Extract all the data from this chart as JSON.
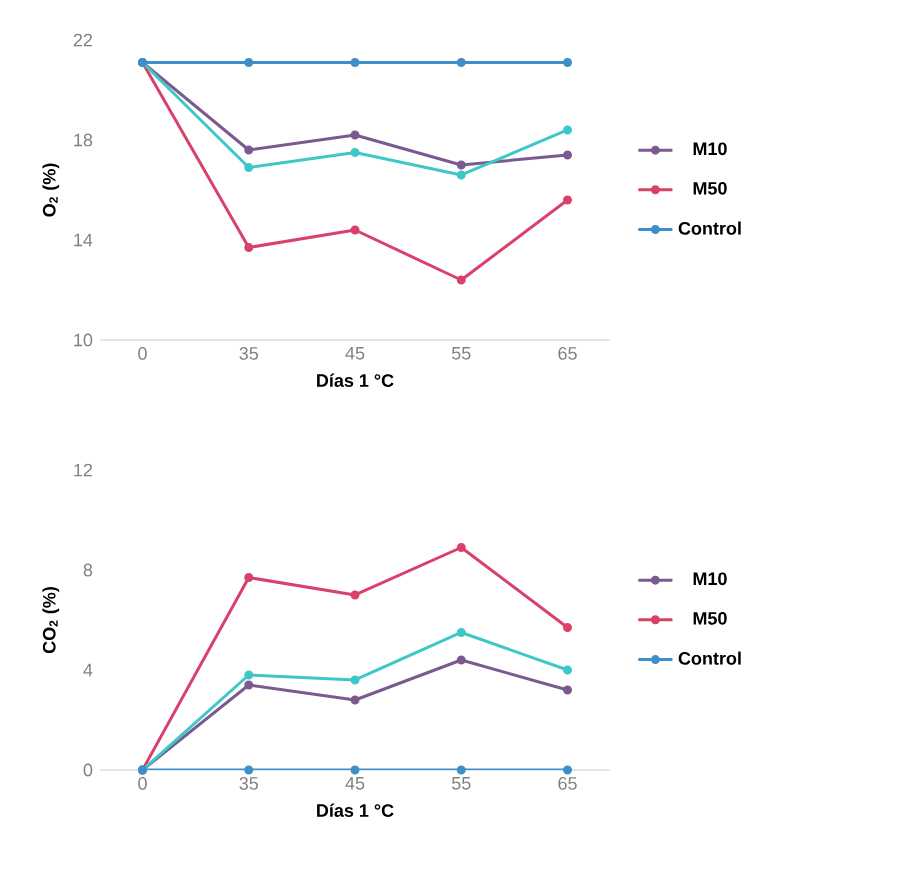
{
  "chart_data": [
    {
      "type": "line",
      "ylabel": "O$_{2}$ (%)",
      "xlabel": "Días 1 °C",
      "categories": [
        "0",
        "35",
        "45",
        "55",
        "65"
      ],
      "ylim": [
        10,
        22
      ],
      "yticks": [
        10,
        14,
        18,
        22
      ],
      "legend": "right",
      "marker": "circle",
      "series": [
        {
          "name": "M10",
          "color": "#7b5a8f",
          "values": [
            21.1,
            17.6,
            18.2,
            17.0,
            17.4
          ]
        },
        {
          "name": "M50",
          "color": "#d9406a",
          "values": [
            21.1,
            13.7,
            14.4,
            12.4,
            15.6
          ]
        },
        {
          "color": "#3fc7c7",
          "values": [
            21.1,
            16.9,
            17.5,
            16.6,
            18.4
          ]
        },
        {
          "name": "Control",
          "color": "#3d8fc9",
          "values": [
            21.1,
            21.1,
            21.1,
            21.1,
            21.1
          ]
        }
      ]
    },
    {
      "type": "line",
      "ylabel": "CO$_{2}$ (%)",
      "xlabel": "Días 1 °C",
      "categories": [
        "0",
        "35",
        "45",
        "55",
        "65"
      ],
      "ylim": [
        0,
        12
      ],
      "yticks": [
        0,
        4,
        8,
        12
      ],
      "legend": "right",
      "marker": "circle",
      "series": [
        {
          "name": "M10",
          "color": "#7b5a8f",
          "values": [
            0,
            3.4,
            2.8,
            4.4,
            3.2
          ]
        },
        {
          "name": "M50",
          "color": "#d9406a",
          "values": [
            0,
            7.7,
            7.0,
            8.9,
            5.7
          ]
        },
        {
          "color": "#3fc7c7",
          "values": [
            0,
            3.8,
            3.6,
            5.5,
            4.0
          ]
        },
        {
          "name": "Control",
          "color": "#3d8fc9",
          "values": [
            0,
            0,
            0,
            0,
            0
          ]
        }
      ]
    }
  ]
}
